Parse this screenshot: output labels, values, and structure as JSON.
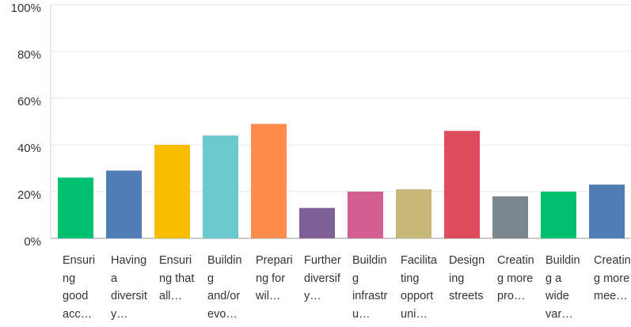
{
  "chart_data": {
    "type": "bar",
    "categories": [
      "Ensuring good acc…",
      "Having a diversity…",
      "Ensuring that all…",
      "Building and/or evo…",
      "Preparing for wil…",
      "Further diversify…",
      "Building infrastru…",
      "Facilitating opportuni…",
      "Designing streets",
      "Creating more pro…",
      "Building a wide var…",
      "Creating more mee…"
    ],
    "values": [
      26,
      29,
      40,
      44,
      49,
      13,
      20,
      21,
      46,
      18,
      20,
      23
    ],
    "colors": [
      "#00bf6f",
      "#507cb6",
      "#f9be00",
      "#6bc8cd",
      "#ff8b4f",
      "#7f6096",
      "#d25f90",
      "#c7b879",
      "#dd4b5d",
      "#7d868c",
      "#00bf6f",
      "#507cb6"
    ],
    "ylim": [
      0,
      100
    ],
    "yticks": [
      {
        "value": 0,
        "label": "0%"
      },
      {
        "value": 20,
        "label": "20%"
      },
      {
        "value": 40,
        "label": "40%"
      },
      {
        "value": 60,
        "label": "60%"
      },
      {
        "value": 80,
        "label": "80%"
      },
      {
        "value": 100,
        "label": "100%"
      }
    ],
    "grid": true
  }
}
